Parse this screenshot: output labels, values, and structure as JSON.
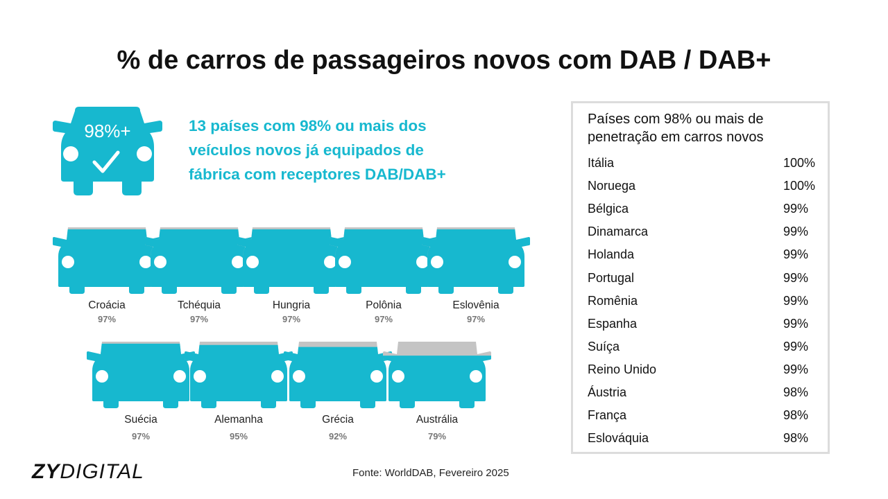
{
  "title": "% de carros de passageiros novos com DAB / DAB+",
  "hero": {
    "badge": "98%+",
    "lines": [
      "13 países com 98% ou mais dos",
      "veículos novos já equipados de",
      "fábrica com receptores DAB/DAB+"
    ]
  },
  "chart_data": {
    "type": "pictograph",
    "categories": [
      "Croácia",
      "Tchéquia",
      "Hungria",
      "Polônia",
      "Eslovênia",
      "Suécia",
      "Alemanha",
      "Grécia",
      "Austrália"
    ],
    "values": [
      97,
      97,
      97,
      97,
      97,
      97,
      95,
      92,
      79
    ],
    "labels": [
      "97%",
      "97%",
      "97%",
      "97%",
      "97%",
      "97%",
      "95%",
      "92%",
      "79%"
    ],
    "ylim": [
      0,
      100
    ]
  },
  "table": {
    "title_lines": [
      "Países com 98% ou mais de",
      "penetração em carros novos"
    ],
    "rows": [
      {
        "country": "Itália",
        "value": "100%"
      },
      {
        "country": "Noruega",
        "value": "100%"
      },
      {
        "country": "Bélgica",
        "value": "99%"
      },
      {
        "country": "Dinamarca",
        "value": "99%"
      },
      {
        "country": "Holanda",
        "value": "99%"
      },
      {
        "country": "Portugal",
        "value": "99%"
      },
      {
        "country": "Romênia",
        "value": "99%"
      },
      {
        "country": "Espanha",
        "value": "99%"
      },
      {
        "country": "Suíça",
        "value": "99%"
      },
      {
        "country": "Reino Unido",
        "value": "99%"
      },
      {
        "country": "Áustria",
        "value": "98%"
      },
      {
        "country": "França",
        "value": "98%"
      },
      {
        "country": "Eslováquia",
        "value": "98%"
      }
    ]
  },
  "logo": {
    "bold": "ZY",
    "light": "DIGITAL"
  },
  "source": "Fonte: WorldDAB, Fevereiro 2025",
  "colors": {
    "accent": "#17b8cf",
    "empty": "#c4c4c4"
  }
}
